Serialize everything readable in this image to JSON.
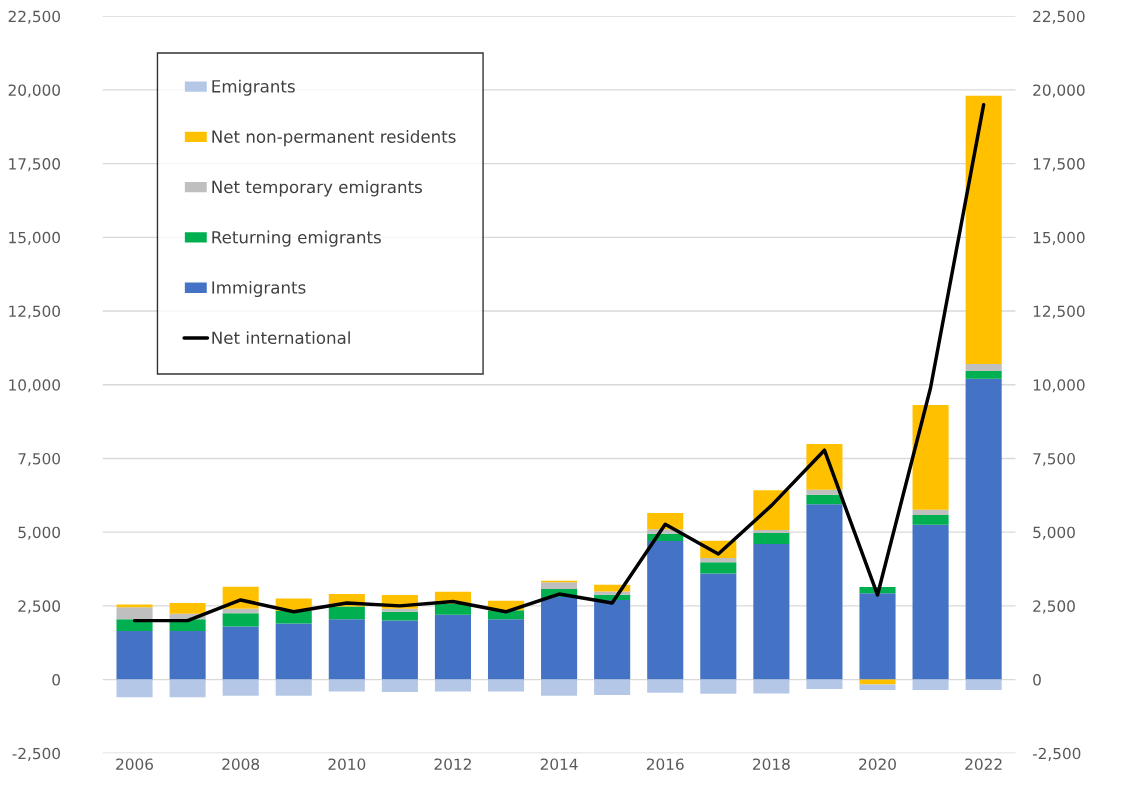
{
  "chart_data": {
    "type": "bar",
    "stacked": true,
    "categories": [
      "2006",
      null,
      "2008",
      null,
      "2010",
      null,
      "2012",
      null,
      "2014",
      null,
      "2016",
      null,
      "2018",
      null,
      "2020",
      null,
      "2022"
    ],
    "series": [
      {
        "name": "Immigrants",
        "color": "#4472c4",
        "values": [
          1650,
          1650,
          1800,
          1900,
          2050,
          2000,
          2200,
          2050,
          2800,
          2700,
          4700,
          3600,
          4600,
          5950,
          2930,
          5250,
          10200
        ]
      },
      {
        "name": "Returning emigrants",
        "color": "#00b050",
        "values": [
          400,
          400,
          450,
          430,
          430,
          300,
          380,
          300,
          270,
          180,
          250,
          380,
          370,
          320,
          210,
          330,
          270
        ]
      },
      {
        "name": "Net temporary emigrants",
        "color": "#bfbfbf",
        "values": [
          400,
          180,
          150,
          null,
          null,
          100,
          null,
          null,
          230,
          110,
          150,
          140,
          100,
          170,
          null,
          180,
          230
        ]
      },
      {
        "name": "Net non-permanent residents",
        "color": "#ffc000",
        "values": [
          100,
          370,
          750,
          420,
          420,
          470,
          400,
          320,
          50,
          230,
          550,
          590,
          1350,
          1550,
          -170,
          3550,
          9100
        ]
      },
      {
        "name": "Emigrants",
        "color": "#b4c7e7",
        "values": [
          -600,
          -600,
          -550,
          -550,
          -400,
          -420,
          -400,
          -400,
          -550,
          -520,
          -450,
          -480,
          -470,
          -320,
          -180,
          -350,
          -350
        ]
      },
      {
        "name": "Net international",
        "color": "#000000",
        "type": "line",
        "values": [
          2000,
          2000,
          2700,
          2300,
          2600,
          2500,
          2650,
          2300,
          2900,
          2600,
          5270,
          4260,
          5900,
          7780,
          2870,
          9900,
          19500
        ]
      }
    ],
    "legend": "top left",
    "grid": "y",
    "line_style": "solid",
    "marker": "none",
    "ylim": [
      -2500,
      22500
    ],
    "yticks": [
      {
        "value": -2500,
        "label": "-2,500"
      },
      0,
      {
        "value": 2500,
        "label": "2,500"
      },
      {
        "value": 5000,
        "label": "5,000"
      },
      {
        "value": 7500,
        "label": "7,500"
      },
      {
        "value": 10000,
        "label": "10,000"
      },
      {
        "value": 12500,
        "label": "12,500"
      },
      {
        "value": 15000,
        "label": "15,000"
      },
      {
        "value": 17500,
        "label": "17,500"
      },
      {
        "value": 20000,
        "label": "20,000"
      },
      {
        "value": 22500,
        "label": "22,500"
      }
    ],
    "y2lim": [
      -2500,
      22500
    ],
    "y2ticks": [
      {
        "value": -2500,
        "label": "-2,500"
      },
      0,
      {
        "value": 2500,
        "label": "2,500"
      },
      {
        "value": 5000,
        "label": "5,000"
      },
      {
        "value": 7500,
        "label": "7,500"
      },
      {
        "value": 10000,
        "label": "10,000"
      },
      {
        "value": 12500,
        "label": "12,500"
      },
      {
        "value": 15000,
        "label": "15,000"
      },
      {
        "value": 17500,
        "label": "17,500"
      },
      {
        "value": 20000,
        "label": "20,000"
      },
      {
        "value": 22500,
        "label": "22,500"
      }
    ]
  }
}
